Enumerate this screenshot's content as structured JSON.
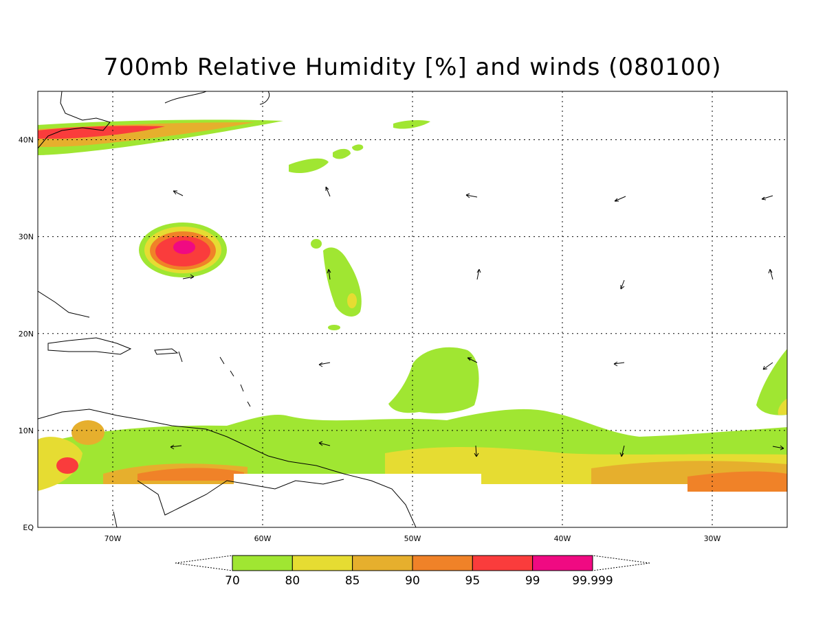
{
  "title": "700mb Relative Humidity [%] and winds (080100)",
  "map": {
    "lon_range": [
      -75,
      -25
    ],
    "lat_range": [
      0,
      45
    ],
    "lon_ticks": [
      {
        "value": -70,
        "label": "70W"
      },
      {
        "value": -60,
        "label": "60W"
      },
      {
        "value": -50,
        "label": "50W"
      },
      {
        "value": -40,
        "label": "40W"
      },
      {
        "value": -30,
        "label": "30W"
      }
    ],
    "lat_ticks": [
      {
        "value": 40,
        "label": "40N"
      },
      {
        "value": 30,
        "label": "30N"
      },
      {
        "value": 20,
        "label": "20N"
      },
      {
        "value": 10,
        "label": "10N"
      },
      {
        "value": 0,
        "label": "EQ"
      }
    ],
    "grid": "dotted",
    "fill_colors": {
      "70": "#a0e632",
      "80": "#e6dc32",
      "85": "#e6af2d",
      "90": "#f08228",
      "95": "#fa3c3c",
      "99": "#f00a82"
    }
  },
  "colorbar": {
    "labels": [
      "70",
      "80",
      "85",
      "90",
      "95",
      "99",
      "99.999"
    ],
    "colors": [
      "#a0e632",
      "#e6dc32",
      "#e6af2d",
      "#f08228",
      "#fa3c3c",
      "#f00a82"
    ]
  }
}
